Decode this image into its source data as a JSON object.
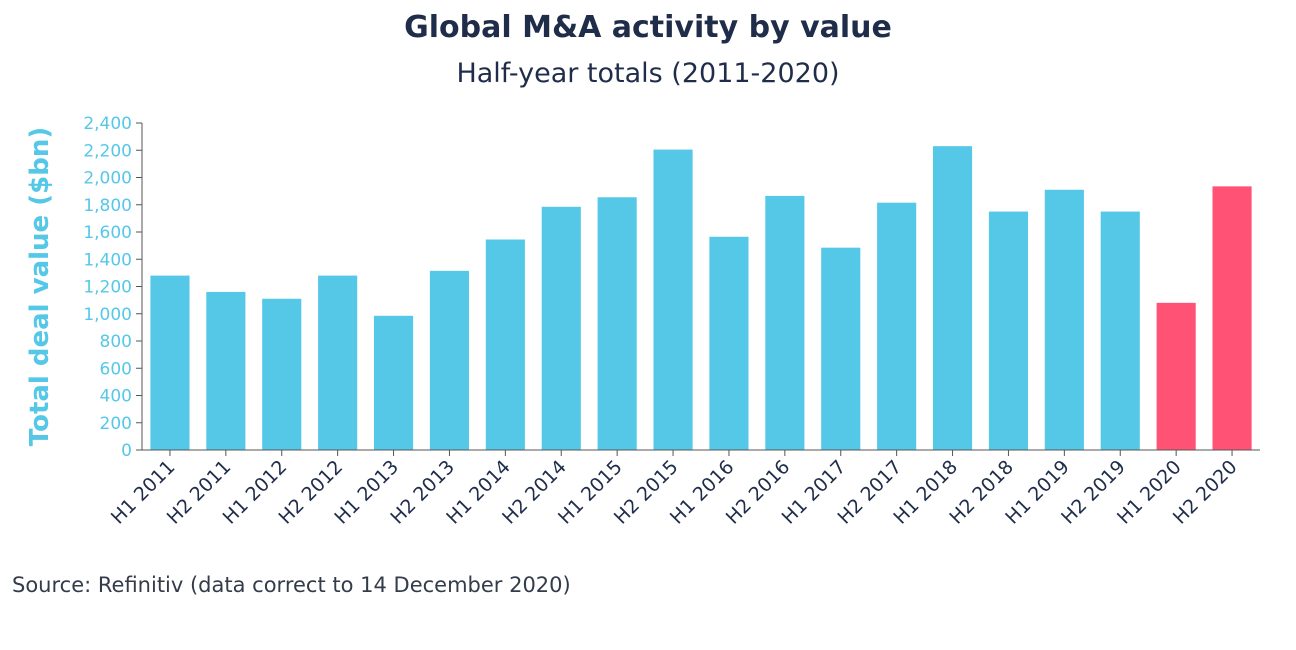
{
  "title": "Global M&A activity by value",
  "subtitle": "Half-year totals (2011-2020)",
  "source": "Source: Refinitiv (data correct to 14 December 2020)",
  "colors": {
    "bar_default": "#55c8e8",
    "bar_highlight": "#ff5274",
    "axis_text": "#55c8e8",
    "title_text": "#1f2d4a",
    "axis_line": "#555555"
  },
  "chart_data": {
    "type": "bar",
    "title": "Global M&A activity by value",
    "subtitle": "Half-year totals (2011-2020)",
    "xlabel": "",
    "ylabel": "Total deal value ($bn)",
    "ylim": [
      0,
      2400
    ],
    "yticks": [
      0,
      200,
      400,
      600,
      800,
      1000,
      1200,
      1400,
      1600,
      1800,
      2000,
      2200,
      2400
    ],
    "ytick_labels": [
      "0",
      "200",
      "400",
      "600",
      "800",
      "1,000",
      "1,200",
      "1,400",
      "1,600",
      "1,800",
      "2,000",
      "2,200",
      "2,400"
    ],
    "grid": false,
    "legend": "none",
    "categories": [
      "H1 2011",
      "H2 2011",
      "H1 2012",
      "H2 2012",
      "H1 2013",
      "H2 2013",
      "H1 2014",
      "H2 2014",
      "H1 2015",
      "H2 2015",
      "H1 2016",
      "H2 2016",
      "H1 2017",
      "H2 2017",
      "H1 2018",
      "H2 2018",
      "H1 2019",
      "H2 2019",
      "H1 2020",
      "H2 2020"
    ],
    "values": [
      1280,
      1160,
      1110,
      1280,
      985,
      1315,
      1545,
      1785,
      1855,
      2205,
      1565,
      1865,
      1485,
      1815,
      2230,
      1750,
      1910,
      1750,
      1080,
      1935
    ],
    "highlighted": [
      "H1 2020",
      "H2 2020"
    ]
  }
}
